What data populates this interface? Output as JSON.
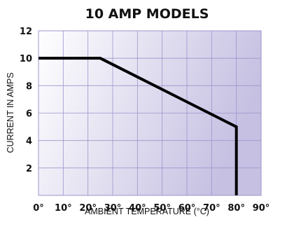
{
  "chart_data": {
    "type": "line",
    "title": "10 AMP MODELS",
    "xlabel": "AMBIENT TEMPERATURE (°C)",
    "ylabel": "CURRENT IN AMPS",
    "xlim": [
      0,
      90
    ],
    "ylim": [
      0,
      12
    ],
    "x_ticks": [
      0,
      10,
      20,
      30,
      40,
      50,
      60,
      70,
      80,
      90
    ],
    "x_tick_labels": [
      "0°",
      "10°",
      "20°",
      "30°",
      "40°",
      "50°",
      "60°",
      "70°",
      "80°",
      "90°"
    ],
    "y_ticks": [
      2,
      4,
      6,
      8,
      10,
      12
    ],
    "y_tick_labels": [
      "2",
      "4",
      "6",
      "8",
      "10",
      "12"
    ],
    "grid": true,
    "series": [
      {
        "x": [
          0,
          25,
          80,
          80
        ],
        "y": [
          10,
          10,
          5,
          0
        ]
      }
    ],
    "colors": {
      "line": "#000000",
      "grid": "#9b96cc",
      "plot_bg_start": "#ffffff",
      "plot_bg_end": "#c6c0e2"
    }
  }
}
